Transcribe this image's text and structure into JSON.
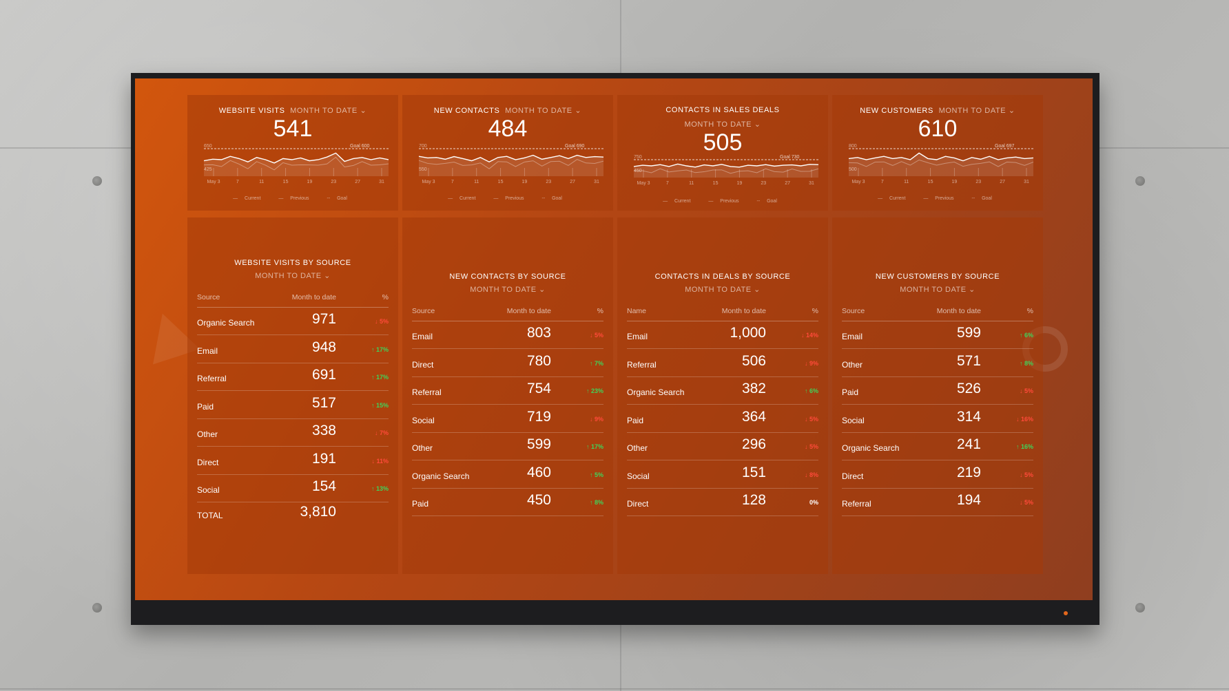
{
  "kpis": [
    {
      "title": "WEBSITE VISITS",
      "period": "MONTH TO DATE",
      "value": "541",
      "y_high": "650",
      "y_low": "425",
      "goal": "Goal 600",
      "x_ticks": [
        "May 3",
        "7",
        "11",
        "15",
        "19",
        "23",
        "27",
        "31"
      ],
      "series": [
        0.55,
        0.48,
        0.5,
        0.35,
        0.45,
        0.6,
        0.4,
        0.5,
        0.65,
        0.45,
        0.5,
        0.42,
        0.55,
        0.5,
        0.38,
        0.2,
        0.58,
        0.45,
        0.4,
        0.5,
        0.42,
        0.5
      ]
    },
    {
      "title": "NEW CONTACTS",
      "period": "MONTH TO DATE",
      "value": "484",
      "y_high": "700",
      "y_low": "550",
      "goal": "Goal 690",
      "x_ticks": [
        "May 3",
        "7",
        "11",
        "15",
        "19",
        "23",
        "27",
        "31"
      ],
      "series": [
        0.35,
        0.42,
        0.4,
        0.48,
        0.36,
        0.45,
        0.55,
        0.4,
        0.6,
        0.4,
        0.35,
        0.5,
        0.42,
        0.3,
        0.48,
        0.4,
        0.32,
        0.45,
        0.3,
        0.4,
        0.36,
        0.38
      ]
    },
    {
      "title": "CONTACTS IN SALES DEALS",
      "period": "MONTH TO DATE",
      "value": "505",
      "y_high": "750",
      "y_low": "450",
      "goal": "Goal 730",
      "x_ticks": [
        "May 3",
        "7",
        "11",
        "15",
        "19",
        "23",
        "27",
        "31"
      ],
      "series": [
        0.55,
        0.45,
        0.5,
        0.4,
        0.55,
        0.35,
        0.5,
        0.6,
        0.42,
        0.5,
        0.38,
        0.55,
        0.6,
        0.45,
        0.5,
        0.4,
        0.52,
        0.45,
        0.42,
        0.5,
        0.38,
        0.4
      ]
    },
    {
      "title": "NEW CUSTOMERS",
      "period": "MONTH TO DATE",
      "value": "610",
      "y_high": "800",
      "y_low": "500",
      "goal": "Goal 697",
      "x_ticks": [
        "May 3",
        "7",
        "11",
        "15",
        "19",
        "23",
        "27",
        "31"
      ],
      "series": [
        0.45,
        0.4,
        0.5,
        0.42,
        0.35,
        0.45,
        0.4,
        0.5,
        0.2,
        0.45,
        0.5,
        0.35,
        0.42,
        0.55,
        0.4,
        0.48,
        0.35,
        0.5,
        0.42,
        0.38,
        0.45,
        0.42
      ]
    }
  ],
  "legend": {
    "current": "Current",
    "previous": "Previous",
    "goal": "Goal"
  },
  "tables": [
    {
      "title": "WEBSITE VISITS BY SOURCE",
      "period": "MONTH TO DATE",
      "col_source": "Source",
      "col_mtd": "Month to date",
      "col_pct": "%",
      "rows": [
        {
          "name": "Organic Search",
          "value": "971",
          "pct": "↓ 5%",
          "dir": "down"
        },
        {
          "name": "Email",
          "value": "948",
          "pct": "↑ 17%",
          "dir": "up"
        },
        {
          "name": "Referral",
          "value": "691",
          "pct": "↑ 17%",
          "dir": "up"
        },
        {
          "name": "Paid",
          "value": "517",
          "pct": "↑ 15%",
          "dir": "up"
        },
        {
          "name": "Other",
          "value": "338",
          "pct": "↓ 7%",
          "dir": "down"
        },
        {
          "name": "Direct",
          "value": "191",
          "pct": "↓ 11%",
          "dir": "down"
        },
        {
          "name": "Social",
          "value": "154",
          "pct": "↑ 13%",
          "dir": "up"
        }
      ],
      "total": {
        "name": "TOTAL",
        "value": "3,810"
      }
    },
    {
      "title": "NEW CONTACTS BY SOURCE",
      "period": "MONTH TO DATE",
      "col_source": "Source",
      "col_mtd": "Month to date",
      "col_pct": "%",
      "rows": [
        {
          "name": "Email",
          "value": "803",
          "pct": "↓ 5%",
          "dir": "down"
        },
        {
          "name": "Direct",
          "value": "780",
          "pct": "↑ 7%",
          "dir": "up"
        },
        {
          "name": "Referral",
          "value": "754",
          "pct": "↑ 23%",
          "dir": "up"
        },
        {
          "name": "Social",
          "value": "719",
          "pct": "↓ 9%",
          "dir": "down"
        },
        {
          "name": "Other",
          "value": "599",
          "pct": "↑ 17%",
          "dir": "up"
        },
        {
          "name": "Organic Search",
          "value": "460",
          "pct": "↑ 5%",
          "dir": "up"
        },
        {
          "name": "Paid",
          "value": "450",
          "pct": "↑ 8%",
          "dir": "up"
        }
      ]
    },
    {
      "title": "CONTACTS IN DEALS BY SOURCE",
      "period": "MONTH TO DATE",
      "col_source": "Name",
      "col_mtd": "Month to date",
      "col_pct": "%",
      "rows": [
        {
          "name": "Email",
          "value": "1,000",
          "pct": "↓ 14%",
          "dir": "down"
        },
        {
          "name": "Referral",
          "value": "506",
          "pct": "↓ 9%",
          "dir": "down"
        },
        {
          "name": "Organic Search",
          "value": "382",
          "pct": "↑ 6%",
          "dir": "up"
        },
        {
          "name": "Paid",
          "value": "364",
          "pct": "↓ 5%",
          "dir": "down"
        },
        {
          "name": "Other",
          "value": "296",
          "pct": "↓ 5%",
          "dir": "down"
        },
        {
          "name": "Social",
          "value": "151",
          "pct": "↓ 8%",
          "dir": "down"
        },
        {
          "name": "Direct",
          "value": "128",
          "pct": "0%",
          "dir": "flat"
        }
      ]
    },
    {
      "title": "NEW CUSTOMERS BY SOURCE",
      "period": "MONTH TO DATE",
      "col_source": "Source",
      "col_mtd": "Month to date",
      "col_pct": "%",
      "rows": [
        {
          "name": "Email",
          "value": "599",
          "pct": "↑ 6%",
          "dir": "up"
        },
        {
          "name": "Other",
          "value": "571",
          "pct": "↑ 8%",
          "dir": "up"
        },
        {
          "name": "Paid",
          "value": "526",
          "pct": "↓ 5%",
          "dir": "down"
        },
        {
          "name": "Social",
          "value": "314",
          "pct": "↓ 16%",
          "dir": "down"
        },
        {
          "name": "Organic Search",
          "value": "241",
          "pct": "↑ 16%",
          "dir": "up"
        },
        {
          "name": "Direct",
          "value": "219",
          "pct": "↓ 5%",
          "dir": "down"
        },
        {
          "name": "Referral",
          "value": "194",
          "pct": "↓ 5%",
          "dir": "down"
        }
      ]
    }
  ],
  "colors": {
    "up": "#3fd45a",
    "down": "#ff4a3a",
    "screen": "#c04e12"
  }
}
